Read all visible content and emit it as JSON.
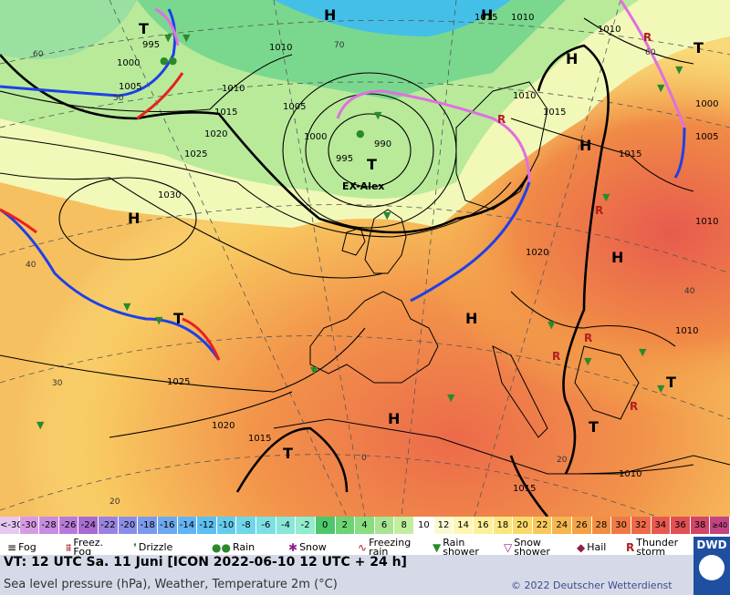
{
  "map": {
    "pressure_labels": [
      {
        "text": "995",
        "x": "t995a"
      },
      {
        "text": "1000",
        "x": "t1000a"
      },
      {
        "text": "1005",
        "x": "t1005a"
      },
      {
        "text": "1010",
        "x": "t1010a"
      },
      {
        "text": "1015",
        "x": "t1015a"
      },
      {
        "text": "1020",
        "x": "t1020a"
      },
      {
        "text": "1025",
        "x": "t1025a"
      },
      {
        "text": "1030",
        "x": "t1030a"
      }
    ],
    "labels": {
      "l995_left": "995",
      "l1000_left": "1000",
      "l1005_left": "1005",
      "l1010_top": "1010",
      "l1010_mid": "1010",
      "l1015_a": "1015",
      "l1020_a": "1020",
      "l1025_a": "1025",
      "l1030": "1030",
      "l1005_c": "1005",
      "l1000_c": "1000",
      "l995_c": "995",
      "l990_c": "990",
      "l1010_ne": "1010",
      "l1015_ne": "1015",
      "l1010_e": "1010",
      "l1005_e": "1005",
      "l1000_e": "1000",
      "l1015_se": "1015",
      "l1020_e": "1020",
      "l1025_s": "1025",
      "l1020_s": "1020",
      "l1015_s": "1015",
      "l1010_s": "1010",
      "l1015_b": "1015",
      "l1010_se": "1010",
      "l1015_n": "1015",
      "l1010_n": "1010",
      "l1010_nw": "1010"
    },
    "grid_labels": {
      "g60": "60",
      "g50": "50",
      "g40w": "40",
      "g30": "30",
      "g20": "20",
      "g0": "0",
      "g20b": "20",
      "g40e": "40",
      "g70": "70",
      "g60n": "60"
    },
    "systems": {
      "H1": "H",
      "H2": "H",
      "H3": "H",
      "H4": "H",
      "H5": "H",
      "H6": "H",
      "H7": "H",
      "H8": "H",
      "T1": "T",
      "T2": "T",
      "T3": "T",
      "T4": "T",
      "T5": "T",
      "T6": "T",
      "T7": "T"
    },
    "low_name": "EX-Alex"
  },
  "scale": {
    "cells": [
      {
        "label": "<-30",
        "color": "#e6c8f0"
      },
      {
        "label": "-30",
        "color": "#d79be6"
      },
      {
        "label": "-28",
        "color": "#c88ce0"
      },
      {
        "label": "-26",
        "color": "#b87ad8"
      },
      {
        "label": "-24",
        "color": "#a86bd0"
      },
      {
        "label": "-22",
        "color": "#9a82e0"
      },
      {
        "label": "-20",
        "color": "#8a8ee6"
      },
      {
        "label": "-18",
        "color": "#7c9aec"
      },
      {
        "label": "-16",
        "color": "#6ea8f0"
      },
      {
        "label": "-14",
        "color": "#62b4f2"
      },
      {
        "label": "-12",
        "color": "#5cc0f0"
      },
      {
        "label": "-10",
        "color": "#66ccee"
      },
      {
        "label": "-8",
        "color": "#70d6ea"
      },
      {
        "label": "-6",
        "color": "#7ce0e4"
      },
      {
        "label": "-4",
        "color": "#88e6da"
      },
      {
        "label": "-2",
        "color": "#92ecce"
      },
      {
        "label": "0",
        "color": "#4cc86a"
      },
      {
        "label": "2",
        "color": "#6cd474"
      },
      {
        "label": "4",
        "color": "#8ade82"
      },
      {
        "label": "6",
        "color": "#a6e690"
      },
      {
        "label": "8",
        "color": "#c2ee9e"
      },
      {
        "label": "10",
        "color": "#ffffff"
      },
      {
        "label": "12",
        "color": "#fafad2"
      },
      {
        "label": "14",
        "color": "#fdf6b4"
      },
      {
        "label": "16",
        "color": "#fcf09a"
      },
      {
        "label": "18",
        "color": "#fbe680"
      },
      {
        "label": "20",
        "color": "#fad86a"
      },
      {
        "label": "22",
        "color": "#f8c85a"
      },
      {
        "label": "24",
        "color": "#f6b64e"
      },
      {
        "label": "26",
        "color": "#f4a246"
      },
      {
        "label": "28",
        "color": "#f28e44"
      },
      {
        "label": "30",
        "color": "#f07a44"
      },
      {
        "label": "32",
        "color": "#ee6a48"
      },
      {
        "label": "34",
        "color": "#e85a4e"
      },
      {
        "label": "36",
        "color": "#e05054"
      },
      {
        "label": "38",
        "color": "#d2466a"
      },
      {
        "label": "≥40 °C",
        "color": "#c24480"
      }
    ]
  },
  "legend": {
    "fog": "Fog",
    "freezing_fog": "Freez. Fog",
    "drizzle": "Drizzle",
    "rain": "Rain",
    "snow": "Snow",
    "freezing_rain": "Freezing rain",
    "rain_shower": "Rain shower",
    "snow_shower": "Snow shower",
    "hail": "Hail",
    "thunderstorm": "Thunder storm"
  },
  "info": {
    "vt": "VT: 12 UTC Sa.   11 Juni [ICON 2022-06-10  12 UTC + 24 h]",
    "description": "Sea level pressure (hPa), Weather, Temperature 2m (°C)",
    "copyright": "© 2022 Deutscher Wetterdienst",
    "logo": "DWD"
  },
  "colors": {
    "cold_front": "#1e40e8",
    "warm_front": "#e82020",
    "occlusion": "#e070e0",
    "isobar": "#000000"
  }
}
